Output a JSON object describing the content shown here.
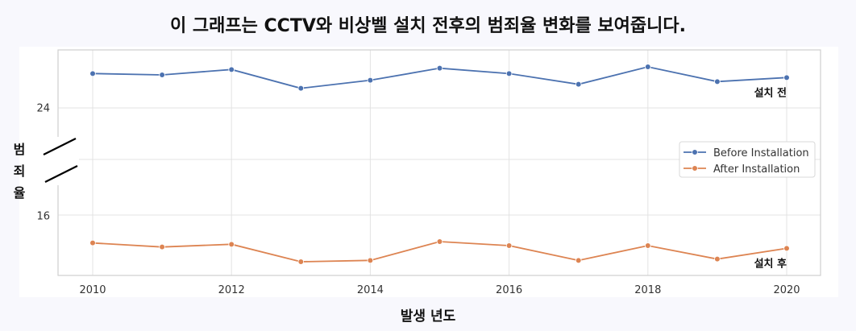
{
  "chart_data": {
    "type": "line",
    "title": "이 그래프는 CCTV와 비상벨 설치 전후의 범죄율 변화를 보여줍니다.",
    "xlabel": "발생 년도",
    "ylabel": "범죄율",
    "x": [
      2010,
      2011,
      2012,
      2013,
      2014,
      2015,
      2016,
      2017,
      2018,
      2019,
      2020
    ],
    "x_ticks": [
      "2010",
      "2012",
      "2014",
      "2016",
      "2018",
      "2020"
    ],
    "y_ticks": [
      "24",
      "16"
    ],
    "axis_break": true,
    "grid": true,
    "legend_position": "right",
    "series": [
      {
        "name": "Before Installation",
        "end_label": "설치 전",
        "color": "#4c72b0",
        "values": [
          26.6,
          26.5,
          26.9,
          25.5,
          26.1,
          27.0,
          26.6,
          25.8,
          27.1,
          26.0,
          26.3
        ]
      },
      {
        "name": "After Installation",
        "end_label": "설치 후",
        "color": "#dd8452",
        "values": [
          14.0,
          13.7,
          13.9,
          12.6,
          12.7,
          14.1,
          13.8,
          12.7,
          13.8,
          12.8,
          13.6
        ]
      }
    ]
  }
}
